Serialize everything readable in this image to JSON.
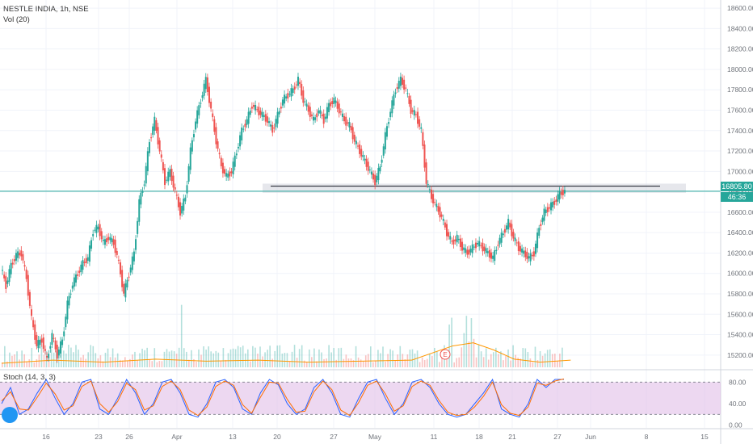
{
  "header": {
    "symbol_line": "NESTLE INDIA, 1h, NSE",
    "volume_label": "Vol (20)",
    "stoch_label": "Stoch (14, 3, 3)"
  },
  "price_tag": {
    "value": "16805.80",
    "countdown": "46:36",
    "color": "#26a69a"
  },
  "earnings_marker": "E",
  "colors": {
    "up": "#26a69a",
    "down": "#ef5350",
    "stoch_k": "#2962ff",
    "stoch_d": "#ff6d00",
    "vol_ma": "#ff9800",
    "stoch_band": "#e1bee7",
    "hline": "#26a69a"
  },
  "chart_data": [
    {
      "type": "candlestick",
      "title": "NESTLE INDIA, 1h, NSE",
      "y_axis_ticks": [
        15200,
        15400,
        15600,
        15800,
        16000,
        16200,
        16400,
        16600,
        16800,
        17000,
        17200,
        17400,
        17600,
        17800,
        18000,
        18200,
        18400,
        18600
      ],
      "y_axis_labels": [
        "15200.00",
        "15400.00",
        "15600.00",
        "15800.00",
        "16000.00",
        "16200.00",
        "16400.00",
        "16600.00",
        "16800.00",
        "17000.00",
        "17200.00",
        "17400.00",
        "17600.00",
        "17800.00",
        "18000.00",
        "18200.00",
        "18400.00",
        "18600.00"
      ],
      "ylim": [
        15080,
        18680
      ],
      "x_axis_labels": [
        "16",
        "23",
        "26",
        "Apr",
        "13",
        "20",
        "27",
        "May",
        "11",
        "18",
        "21",
        "27",
        "Jun",
        "8",
        "15"
      ],
      "last_price": 16805.8,
      "horizontal_line": 16805.8,
      "resistance_zone": [
        16790,
        16880
      ],
      "resistance_line": 16855,
      "price_path": [
        [
          0,
          16060
        ],
        [
          2,
          15880
        ],
        [
          3,
          16080
        ],
        [
          4,
          16180
        ],
        [
          5,
          16200
        ],
        [
          6,
          15950
        ],
        [
          7,
          15550
        ],
        [
          8,
          15300
        ],
        [
          9,
          15350
        ],
        [
          10,
          15150
        ],
        [
          11,
          15400
        ],
        [
          12,
          15200
        ],
        [
          13,
          15350
        ],
        [
          14,
          15700
        ],
        [
          15,
          15900
        ],
        [
          16,
          16000
        ],
        [
          17,
          16100
        ],
        [
          18,
          16150
        ],
        [
          19,
          16420
        ],
        [
          20,
          16450
        ],
        [
          21,
          16300
        ],
        [
          22,
          16350
        ],
        [
          23,
          16300
        ],
        [
          24,
          16100
        ],
        [
          25,
          15800
        ],
        [
          26,
          16000
        ],
        [
          27,
          16200
        ],
        [
          28,
          16700
        ],
        [
          29,
          16900
        ],
        [
          30,
          17300
        ],
        [
          31,
          17500
        ],
        [
          32,
          17200
        ],
        [
          33,
          16900
        ],
        [
          34,
          17000
        ],
        [
          35,
          16800
        ],
        [
          36,
          16600
        ],
        [
          37,
          16750
        ],
        [
          38,
          17200
        ],
        [
          39,
          17500
        ],
        [
          40,
          17700
        ],
        [
          41,
          17900
        ],
        [
          42,
          17600
        ],
        [
          43,
          17300
        ],
        [
          44,
          17050
        ],
        [
          45,
          16950
        ],
        [
          46,
          17000
        ],
        [
          47,
          17200
        ],
        [
          48,
          17400
        ],
        [
          49,
          17500
        ],
        [
          50,
          17650
        ],
        [
          51,
          17600
        ],
        [
          52,
          17550
        ],
        [
          53,
          17500
        ],
        [
          54,
          17400
        ],
        [
          55,
          17550
        ],
        [
          56,
          17700
        ],
        [
          57,
          17750
        ],
        [
          58,
          17800
        ],
        [
          59,
          17900
        ],
        [
          60,
          17700
        ],
        [
          61,
          17600
        ],
        [
          62,
          17500
        ],
        [
          63,
          17600
        ],
        [
          64,
          17500
        ],
        [
          65,
          17650
        ],
        [
          66,
          17700
        ],
        [
          67,
          17600
        ],
        [
          68,
          17500
        ],
        [
          69,
          17450
        ],
        [
          70,
          17300
        ],
        [
          71,
          17200
        ],
        [
          72,
          17100
        ],
        [
          73,
          17000
        ],
        [
          74,
          16900
        ],
        [
          75,
          17050
        ],
        [
          76,
          17350
        ],
        [
          77,
          17600
        ],
        [
          78,
          17800
        ],
        [
          79,
          17900
        ],
        [
          80,
          17800
        ],
        [
          81,
          17600
        ],
        [
          82,
          17550
        ],
        [
          83,
          17400
        ],
        [
          84,
          16900
        ],
        [
          85,
          16750
        ],
        [
          86,
          16650
        ],
        [
          87,
          16550
        ],
        [
          88,
          16400
        ],
        [
          89,
          16300
        ],
        [
          90,
          16350
        ],
        [
          91,
          16250
        ],
        [
          92,
          16200
        ],
        [
          93,
          16250
        ],
        [
          94,
          16300
        ],
        [
          95,
          16250
        ],
        [
          96,
          16200
        ],
        [
          97,
          16150
        ],
        [
          98,
          16300
        ],
        [
          99,
          16400
        ],
        [
          100,
          16500
        ],
        [
          101,
          16350
        ],
        [
          102,
          16250
        ],
        [
          103,
          16200
        ],
        [
          104,
          16150
        ],
        [
          105,
          16200
        ],
        [
          106,
          16450
        ],
        [
          107,
          16600
        ],
        [
          108,
          16650
        ],
        [
          109,
          16700
        ],
        [
          110,
          16780
        ],
        [
          111,
          16805.8
        ]
      ],
      "volume_path": [
        [
          0,
          15120
        ],
        [
          10,
          15150
        ],
        [
          20,
          15130
        ],
        [
          30,
          15160
        ],
        [
          40,
          15140
        ],
        [
          50,
          15150
        ],
        [
          60,
          15130
        ],
        [
          70,
          15140
        ],
        [
          80,
          15150
        ],
        [
          88,
          15290
        ],
        [
          92,
          15320
        ],
        [
          96,
          15250
        ],
        [
          100,
          15160
        ],
        [
          105,
          15130
        ],
        [
          111,
          15150
        ]
      ]
    },
    {
      "type": "line",
      "title": "Stoch (14, 3, 3)",
      "y_axis_labels": [
        "80.00",
        "40.00",
        "0.00"
      ],
      "ylim": [
        -5,
        100
      ],
      "upper_band": 80,
      "lower_band": 20,
      "series": [
        {
          "values": [
            40,
            70,
            20,
            30,
            60,
            85,
            50,
            20,
            40,
            80,
            85,
            30,
            20,
            50,
            85,
            60,
            20,
            40,
            80,
            85,
            60,
            20,
            15,
            40,
            80,
            85,
            70,
            30,
            20,
            60,
            85,
            75,
            40,
            20,
            30,
            70,
            85,
            60,
            20,
            15,
            50,
            80,
            85,
            50,
            20,
            40,
            80,
            85,
            70,
            40,
            20,
            15,
            20,
            40,
            60,
            85,
            30,
            20,
            15,
            40,
            85,
            70,
            85,
            85
          ]
        },
        {
          "values": [
            45,
            62,
            30,
            28,
            52,
            78,
            58,
            28,
            36,
            72,
            82,
            40,
            24,
            44,
            78,
            66,
            28,
            36,
            72,
            82,
            66,
            28,
            18,
            34,
            72,
            82,
            74,
            38,
            22,
            52,
            80,
            78,
            48,
            24,
            26,
            62,
            82,
            66,
            28,
            18,
            42,
            74,
            82,
            58,
            26,
            36,
            72,
            82,
            74,
            46,
            24,
            18,
            20,
            34,
            54,
            80,
            38,
            22,
            18,
            34,
            78,
            74,
            82,
            86
          ]
        }
      ]
    }
  ]
}
